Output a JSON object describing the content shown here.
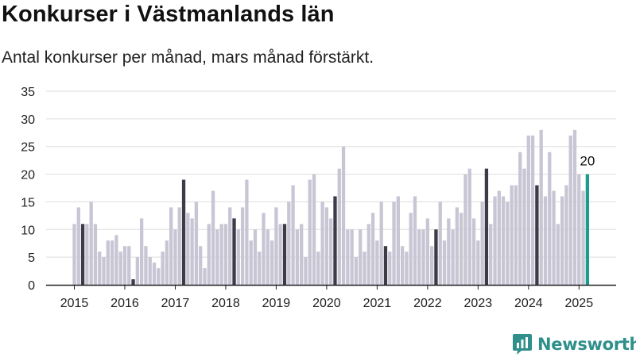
{
  "title": "Konkurser i Västmanlands län",
  "subtitle": "Antal konkurser per månad, mars månad förstärkt.",
  "logo": {
    "text": "Newsworthy",
    "icon": "newsworthy-logo-icon"
  },
  "colors": {
    "base": "#c8c6d4",
    "highlight": "#3d3b47",
    "latest": "#1a9c8f",
    "grid": "#dddddd",
    "axis": "#222222"
  },
  "chart_data": {
    "type": "bar",
    "title": "Konkurser i Västmanlands län",
    "subtitle": "Antal konkurser per månad, mars månad förstärkt.",
    "xlabel": "",
    "ylabel": "",
    "ylim": [
      0,
      35
    ],
    "y_ticks": [
      0,
      5,
      10,
      15,
      20,
      25,
      30,
      35
    ],
    "x_ticks": [
      "2015",
      "2016",
      "2017",
      "2018",
      "2019",
      "2020",
      "2021",
      "2022",
      "2023",
      "2024",
      "2025"
    ],
    "grid": true,
    "highlight_month": "Mar",
    "start": "2015-01",
    "end": "2025-03",
    "values": [
      11,
      14,
      11,
      11,
      15,
      11,
      6,
      5,
      8,
      8,
      9,
      6,
      7,
      7,
      1,
      5,
      12,
      7,
      5,
      4,
      3,
      6,
      8,
      14,
      10,
      14,
      19,
      13,
      12,
      15,
      7,
      3,
      11,
      17,
      10,
      11,
      11,
      14,
      12,
      10,
      14,
      19,
      8,
      10,
      6,
      13,
      10,
      8,
      14,
      11,
      11,
      15,
      18,
      10,
      11,
      5,
      19,
      20,
      6,
      15,
      14,
      12,
      16,
      21,
      25,
      10,
      10,
      5,
      10,
      6,
      11,
      13,
      8,
      15,
      7,
      6,
      15,
      16,
      7,
      6,
      13,
      16,
      10,
      10,
      12,
      7,
      10,
      15,
      8,
      12,
      10,
      14,
      13,
      20,
      21,
      12,
      8,
      15,
      21,
      11,
      16,
      17,
      16,
      15,
      18,
      18,
      24,
      21,
      27,
      27,
      18,
      28,
      16,
      24,
      17,
      11,
      16,
      18,
      27,
      28,
      20,
      17,
      20
    ],
    "latest_label": "20"
  }
}
